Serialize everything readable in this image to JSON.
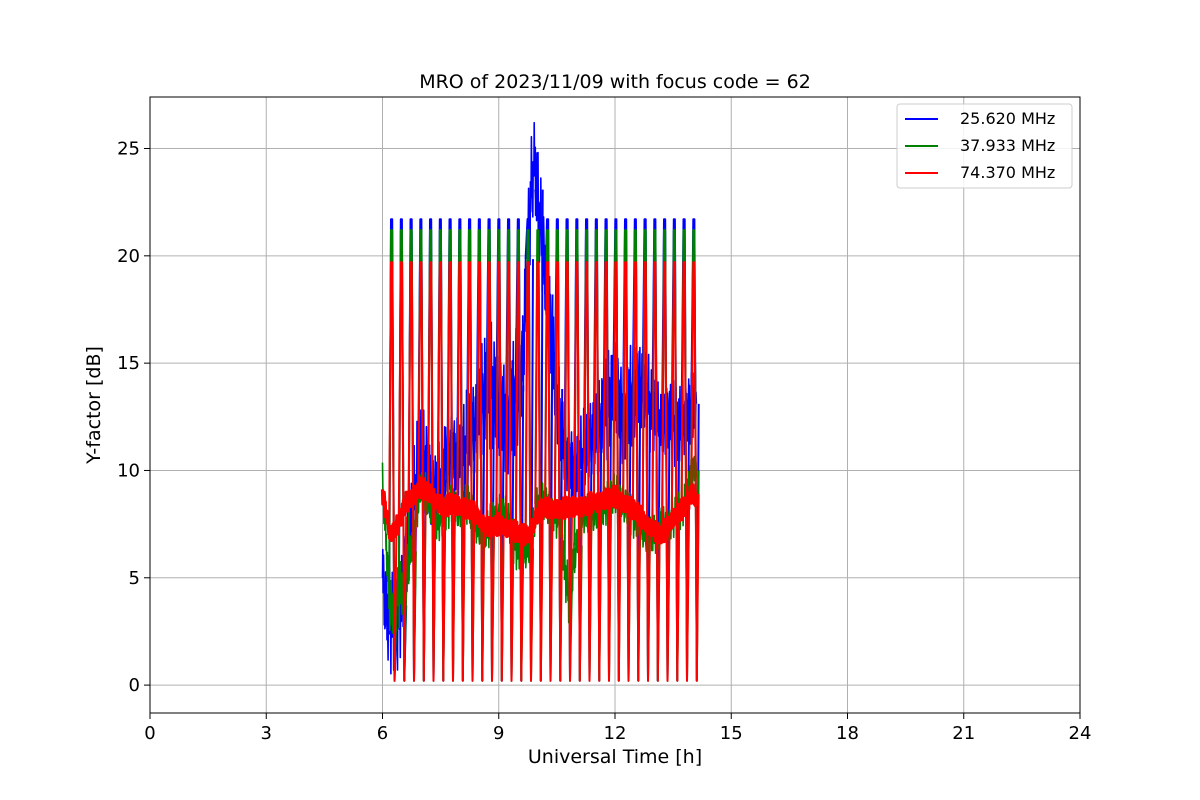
{
  "chart_data": {
    "type": "line",
    "title": "MRO of 2023/11/09 with focus code = 62",
    "xlabel": "Universal Time [h]",
    "ylabel": "Y-factor [dB]",
    "xlim": [
      0,
      24
    ],
    "ylim": [
      -1.3,
      27.4
    ],
    "xticks": [
      0,
      3,
      6,
      9,
      12,
      15,
      18,
      21,
      24
    ],
    "yticks": [
      0,
      5,
      10,
      15,
      20,
      25
    ],
    "grid": true,
    "legend_position": "top-right",
    "series": [
      {
        "name": "25.620 MHz",
        "color": "#0000ff",
        "calibration_peak": 21.7,
        "x": [
          6.0,
          6.1,
          6.2,
          6.3,
          6.4,
          6.5,
          6.6,
          6.7,
          6.8,
          6.9,
          7.0,
          7.2,
          7.4,
          7.6,
          7.8,
          8.0,
          8.2,
          8.4,
          8.6,
          8.8,
          9.0,
          9.2,
          9.4,
          9.6,
          9.8,
          9.9,
          10.0,
          10.2,
          10.4,
          10.6,
          10.8,
          11.0,
          11.2,
          11.4,
          11.6,
          11.8,
          12.0,
          12.2,
          12.4,
          12.6,
          12.8,
          13.0,
          13.2,
          13.4,
          13.6,
          13.8,
          14.0,
          14.1
        ],
        "y": [
          5.0,
          3.5,
          3.0,
          2.8,
          3.0,
          4.0,
          5.5,
          7.0,
          8.5,
          10.0,
          11.0,
          9.5,
          9.0,
          10.5,
          11.0,
          10.5,
          11.5,
          12.0,
          13.5,
          14.0,
          13.0,
          12.5,
          13.5,
          14.5,
          22.0,
          24.5,
          23.0,
          19.0,
          15.5,
          12.0,
          10.5,
          10.0,
          11.0,
          11.5,
          12.0,
          13.0,
          14.0,
          12.5,
          13.5,
          14.0,
          13.5,
          12.5,
          12.0,
          12.5,
          12.0,
          12.5,
          13.0,
          13.5
        ],
        "band": [
          2.0,
          2.5,
          2.5,
          2.5,
          2.5,
          2.5,
          2.5,
          2.5,
          2.5,
          2.5,
          2.5,
          2.5,
          2.0,
          2.0,
          2.0,
          2.0,
          2.5,
          2.5,
          3.0,
          3.0,
          3.0,
          3.0,
          3.0,
          3.0,
          3.0,
          2.0,
          2.5,
          2.5,
          2.5,
          2.0,
          2.0,
          2.0,
          2.0,
          2.0,
          2.5,
          2.5,
          2.5,
          2.5,
          2.5,
          2.5,
          2.5,
          2.0,
          2.0,
          2.0,
          2.0,
          2.0,
          2.0,
          2.0
        ]
      },
      {
        "name": "37.933 MHz",
        "color": "#008000",
        "calibration_peak": 21.2,
        "x": [
          6.0,
          6.2,
          6.4,
          6.6,
          6.8,
          7.0,
          7.2,
          7.4,
          7.6,
          7.8,
          8.0,
          8.2,
          8.4,
          8.6,
          8.8,
          9.0,
          9.2,
          9.4,
          9.6,
          9.8,
          10.0,
          10.2,
          10.4,
          10.6,
          10.8,
          11.0,
          11.2,
          11.4,
          11.6,
          11.8,
          12.0,
          12.2,
          12.4,
          12.6,
          12.8,
          13.0,
          13.2,
          13.4,
          13.6,
          13.8,
          14.0,
          14.1
        ],
        "y": [
          9.5,
          3.5,
          4.0,
          5.0,
          7.0,
          9.5,
          8.5,
          7.5,
          8.0,
          8.5,
          8.0,
          8.5,
          7.5,
          7.0,
          7.5,
          8.0,
          8.0,
          6.5,
          6.0,
          6.5,
          8.5,
          8.5,
          8.0,
          7.5,
          4.0,
          6.5,
          8.0,
          8.0,
          8.0,
          8.5,
          9.0,
          8.5,
          8.0,
          7.5,
          7.0,
          7.0,
          7.5,
          7.5,
          8.0,
          8.5,
          10.0,
          10.0
        ],
        "band": [
          1.0,
          1.5,
          1.5,
          1.5,
          1.0,
          1.0,
          1.0,
          1.0,
          1.0,
          1.0,
          1.0,
          1.0,
          1.0,
          1.0,
          1.0,
          1.0,
          1.0,
          1.0,
          1.0,
          1.0,
          1.0,
          1.0,
          1.0,
          1.0,
          1.5,
          1.0,
          1.0,
          1.0,
          1.0,
          1.0,
          1.0,
          1.0,
          1.0,
          1.0,
          1.0,
          1.0,
          1.0,
          1.0,
          1.0,
          1.0,
          1.0,
          1.0
        ]
      },
      {
        "name": "74.370 MHz",
        "color": "#ff0000",
        "calibration_peak": 19.7,
        "x": [
          6.0,
          6.2,
          6.4,
          6.6,
          6.8,
          7.0,
          7.2,
          7.4,
          7.6,
          7.8,
          8.0,
          8.2,
          8.4,
          8.6,
          8.8,
          9.0,
          9.2,
          9.4,
          9.6,
          9.8,
          10.0,
          10.2,
          10.4,
          10.6,
          10.8,
          11.0,
          11.2,
          11.4,
          11.6,
          11.8,
          12.0,
          12.2,
          12.4,
          12.6,
          12.8,
          13.0,
          13.2,
          13.4,
          13.6,
          13.8,
          14.0,
          14.1
        ],
        "y": [
          9.0,
          7.0,
          7.5,
          8.5,
          8.8,
          9.2,
          9.0,
          8.5,
          8.3,
          8.5,
          8.3,
          8.2,
          8.0,
          7.5,
          7.3,
          7.5,
          7.3,
          7.2,
          7.0,
          7.0,
          8.0,
          8.3,
          8.2,
          8.2,
          8.3,
          8.3,
          8.3,
          8.5,
          8.5,
          8.7,
          8.8,
          8.5,
          8.3,
          8.0,
          7.5,
          7.2,
          7.0,
          7.5,
          8.0,
          8.3,
          9.0,
          8.5
        ],
        "band": [
          0.5,
          0.5,
          0.5,
          0.5,
          0.5,
          0.5,
          0.5,
          0.5,
          0.5,
          0.5,
          0.5,
          0.5,
          0.5,
          0.5,
          0.5,
          0.5,
          0.5,
          0.5,
          0.5,
          0.5,
          0.5,
          0.5,
          0.5,
          0.5,
          0.5,
          0.5,
          0.5,
          0.5,
          0.5,
          0.5,
          0.5,
          0.5,
          0.5,
          0.5,
          0.5,
          0.5,
          0.5,
          0.5,
          0.5,
          0.5,
          0.5,
          0.5
        ]
      }
    ],
    "calibration_spikes": {
      "x_start": 6.22,
      "x_end": 14.02,
      "count": 32,
      "trough": 0.2
    }
  }
}
